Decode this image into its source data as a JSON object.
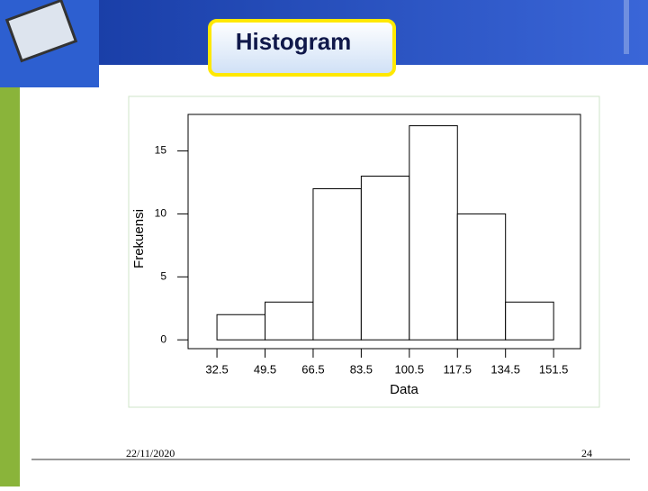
{
  "chart_data": {
    "type": "histogram",
    "title": "Histogram",
    "bins": [
      32.5,
      49.5,
      66.5,
      83.5,
      100.5,
      117.5,
      134.5,
      151.5
    ],
    "values": [
      2,
      3,
      12,
      13,
      17,
      10,
      3
    ],
    "color": "#ffffff",
    "xlabel": "Data",
    "ylabel": "Frekuensi",
    "xlim": [
      22.3,
      161
    ],
    "ylim": [
      -0.7,
      17.9
    ],
    "xticks": [
      32.5,
      49.5,
      66.5,
      83.5,
      100.5,
      117.5,
      134.5,
      151.5
    ],
    "yticks": [
      0,
      5,
      10,
      15
    ]
  },
  "footer": {
    "date": "22/11/2020",
    "page": "24"
  }
}
